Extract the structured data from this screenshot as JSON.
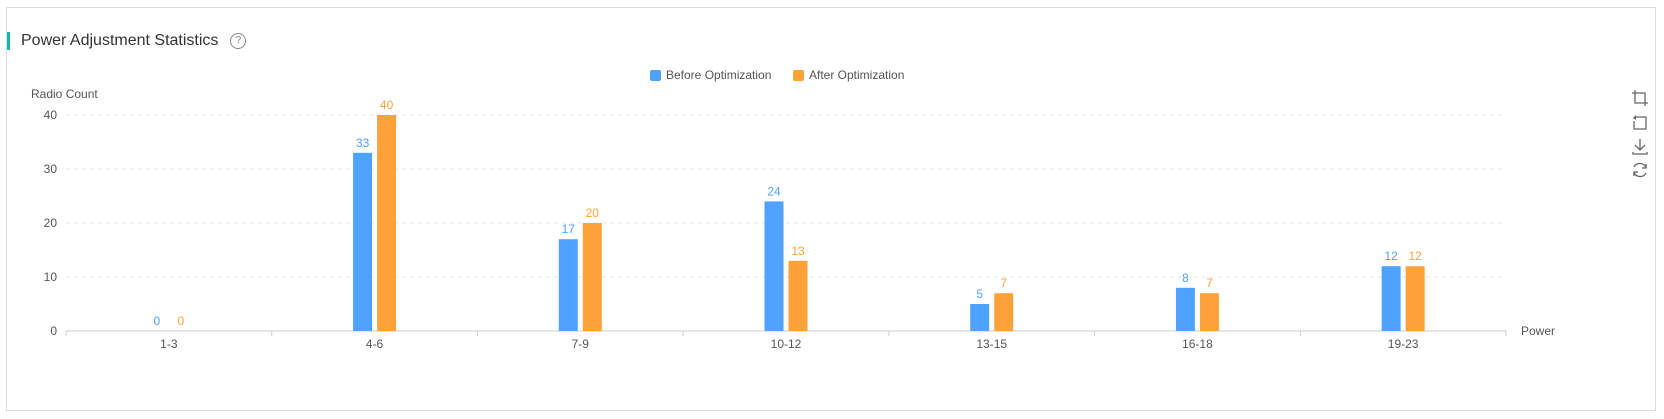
{
  "header": {
    "title": "Power Adjustment Statistics",
    "help_glyph": "?"
  },
  "colors": {
    "accent": "#14b8a6",
    "before": "#4da3ff",
    "after": "#ffa23a",
    "grid": "#e6e6e6",
    "axis": "#cccccc"
  },
  "icons": [
    "crop-icon",
    "undo-icon",
    "download-icon",
    "refresh-icon"
  ],
  "chart_data": {
    "type": "bar",
    "categories": [
      "1-3",
      "4-6",
      "7-9",
      "10-12",
      "13-15",
      "16-18",
      "19-23"
    ],
    "series": [
      {
        "name": "Before Optimization",
        "values": [
          0,
          33,
          17,
          24,
          5,
          8,
          12
        ]
      },
      {
        "name": "After Optimization",
        "values": [
          0,
          40,
          20,
          13,
          7,
          7,
          12
        ]
      }
    ],
    "ylabel": "Radio Count",
    "xlabel": "Power",
    "ylim": [
      0,
      40
    ],
    "yticks": [
      0,
      10,
      20,
      30,
      40
    ],
    "grid": true,
    "legend_position": "top-center",
    "data_labels": true
  }
}
